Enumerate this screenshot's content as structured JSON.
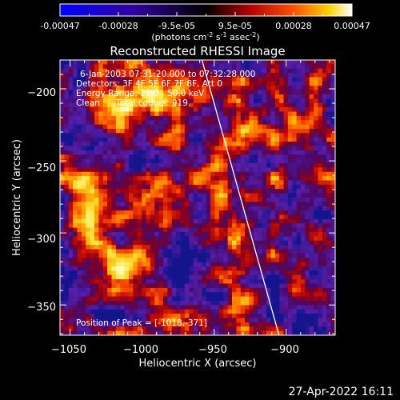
{
  "colorbar": {
    "tick_labels": [
      "-0.00047",
      "-0.00028",
      "-9.5e-05",
      "9.5e-05",
      "0.00028",
      "0.00047"
    ],
    "range": [
      -0.00047,
      0.00047
    ],
    "units_parts": [
      "(photons cm",
      "-2",
      " s",
      "-1",
      " asec",
      "-2",
      ")"
    ],
    "colors": [
      "#0000ff",
      "#000000",
      "#ff0000",
      "#ffff00",
      "#ffffff"
    ]
  },
  "chart_data": {
    "type": "heatmap",
    "title": "Reconstructed RHESSI Image",
    "xlabel": "Heliocentric X (arcsec)",
    "ylabel": "Heliocentric Y (arcsec)",
    "xlim": [
      -1057,
      -866
    ],
    "ylim": [
      -371,
      -180
    ],
    "x_ticks": [
      -1050,
      -1000,
      -950,
      -900
    ],
    "y_ticks": [
      -350,
      -300,
      -250,
      -200
    ],
    "x_tick_labels": [
      "−1050",
      "−1000",
      "−950",
      "−900"
    ],
    "y_tick_labels": [
      "−350",
      "−300",
      "−250",
      "−200"
    ],
    "limb_line": {
      "x": [
        -960,
        -905
      ],
      "y": [
        -180,
        -371
      ]
    },
    "peak": {
      "x": -1018,
      "y": -371
    },
    "grid": false
  },
  "annotations": {
    "time_range": "6-Jan-2003 07:31:20.000 to 07:32:28.000",
    "detectors": "Detectors: 3F 4F 5F 6F 7F 8F, Att 0",
    "energy": "Energy Range: 25.0 - 50.0 keV",
    "method": "Clean",
    "counts": "Total counts: 919.",
    "peak_text": "Position of Peak = [-1018,-371]"
  },
  "footer": {
    "timestamp": "27-Apr-2022 16:11"
  }
}
